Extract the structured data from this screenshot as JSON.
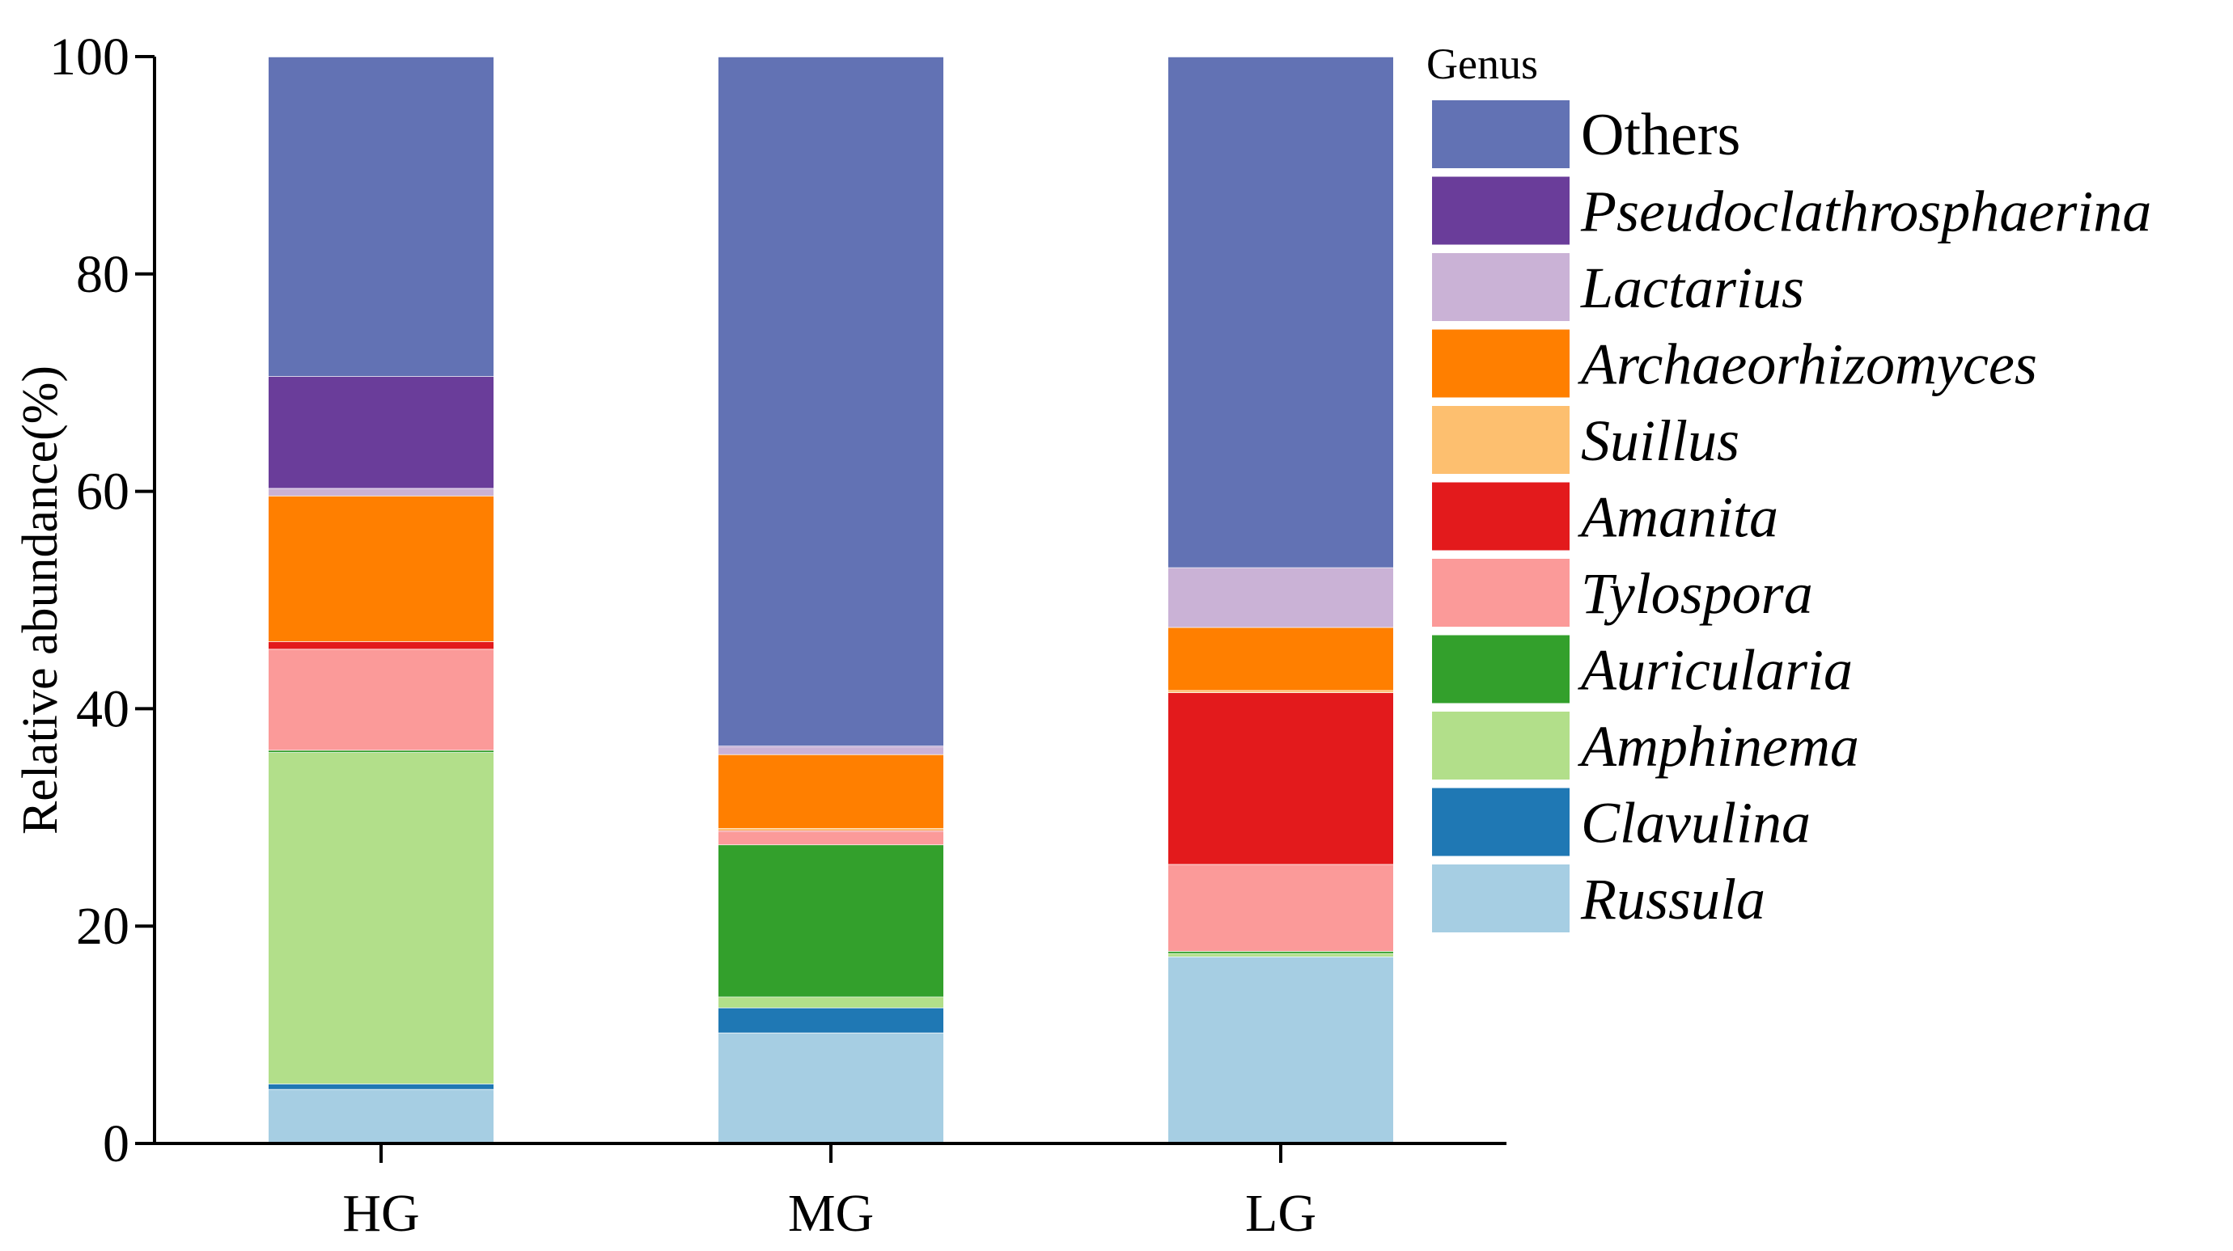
{
  "chart_data": {
    "type": "bar",
    "stacked": true,
    "title": "",
    "xlabel": "",
    "ylabel": "Relative abundance(%)",
    "ylim": [
      0,
      100
    ],
    "yticks": [
      "0",
      "20",
      "40",
      "60",
      "80",
      "100"
    ],
    "categories": [
      "HG",
      "MG",
      "LG"
    ],
    "legend_title": "Genus",
    "legend_position": "right",
    "series": [
      {
        "name": "Russula",
        "color": "#a6cee3",
        "italic": true,
        "values": [
          5.0,
          10.2,
          17.2
        ]
      },
      {
        "name": "Clavulina",
        "color": "#1f78b4",
        "italic": true,
        "values": [
          0.5,
          2.3,
          0.0
        ]
      },
      {
        "name": "Amphinema",
        "color": "#b2df8a",
        "italic": true,
        "values": [
          30.5,
          1.0,
          0.3
        ]
      },
      {
        "name": "Auricularia",
        "color": "#33a02c",
        "italic": true,
        "values": [
          0.2,
          14.0,
          0.2
        ]
      },
      {
        "name": "Tylospora",
        "color": "#fb9a99",
        "italic": true,
        "values": [
          9.3,
          1.2,
          8.0
        ]
      },
      {
        "name": "Amanita",
        "color": "#e31a1c",
        "italic": true,
        "values": [
          0.7,
          0.1,
          15.8
        ]
      },
      {
        "name": "Suillus",
        "color": "#fdbf6f",
        "italic": true,
        "values": [
          0.0,
          0.2,
          0.2
        ]
      },
      {
        "name": "Archaeorhizomyces",
        "color": "#ff7f00",
        "italic": true,
        "values": [
          13.4,
          6.8,
          5.8
        ]
      },
      {
        "name": "Lactarius",
        "color": "#cab2d6",
        "italic": true,
        "values": [
          0.7,
          0.7,
          5.5
        ]
      },
      {
        "name": "Pseudoclathrosphaerina",
        "color": "#6a3d9a",
        "italic": true,
        "values": [
          10.3,
          0.1,
          0.0
        ]
      },
      {
        "name": "Others",
        "color": "#6272b4",
        "italic": false,
        "values": [
          29.4,
          63.4,
          47.0
        ]
      }
    ]
  }
}
